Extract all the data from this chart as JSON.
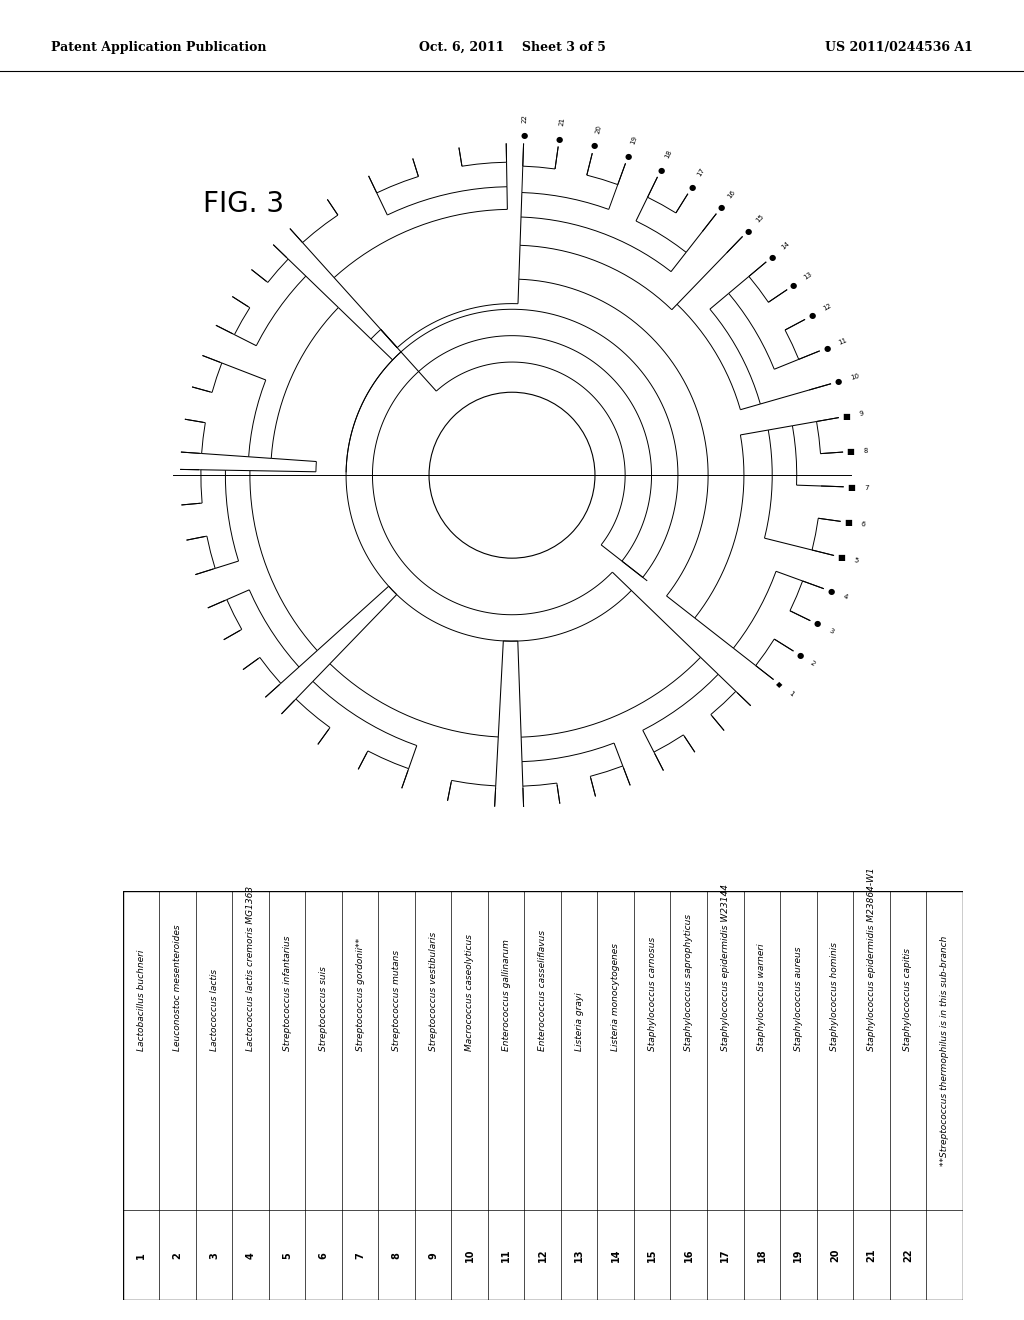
{
  "header_left": "Patent Application Publication",
  "header_center": "Oct. 6, 2011    Sheet 3 of 5",
  "header_right": "US 2011/0244536 A1",
  "fig_label": "FIG. 3",
  "table_entries": [
    {
      "num": "1",
      "name": "Lactobacillus buchneri"
    },
    {
      "num": "2",
      "name": "Leuconostoc mesenteroides"
    },
    {
      "num": "3",
      "name": "Lactococcus lactis"
    },
    {
      "num": "4",
      "name": "Lactococcus lactis cremoris MG1363"
    },
    {
      "num": "5",
      "name": "Streptococcus infantarius"
    },
    {
      "num": "6",
      "name": "Streptococcus suis"
    },
    {
      "num": "7",
      "name": "Streptococcus gordonii**"
    },
    {
      "num": "8",
      "name": "Streptococcus mutans"
    },
    {
      "num": "9",
      "name": "Streptococcus vestibularis"
    },
    {
      "num": "10",
      "name": "Macrococcus caseolyticus"
    },
    {
      "num": "11",
      "name": "Enterococcus gallinarum"
    },
    {
      "num": "12",
      "name": "Enterococcus casseliflavus"
    },
    {
      "num": "13",
      "name": "Listeria grayi"
    },
    {
      "num": "14",
      "name": "Listeria monocytogenes"
    },
    {
      "num": "15",
      "name": "Staphylococcus carnosus"
    },
    {
      "num": "16",
      "name": "Staphylococcus saprophyticus"
    },
    {
      "num": "17",
      "name": "Staphylococcus epidermidis W23144"
    },
    {
      "num": "18",
      "name": "Staphylococcus warneri"
    },
    {
      "num": "19",
      "name": "Staphylococcus aureus"
    },
    {
      "num": "20",
      "name": "Staphylococcus hominis"
    },
    {
      "num": "21",
      "name": "Staphylococcus epidermidis M23864-W1"
    },
    {
      "num": "22",
      "name": "Staphylococcus capitis"
    },
    {
      "num": "",
      "name": "**Streptococcus thermophilus is in this sub-branch"
    }
  ],
  "background_color": "#ffffff",
  "line_color": "#000000"
}
